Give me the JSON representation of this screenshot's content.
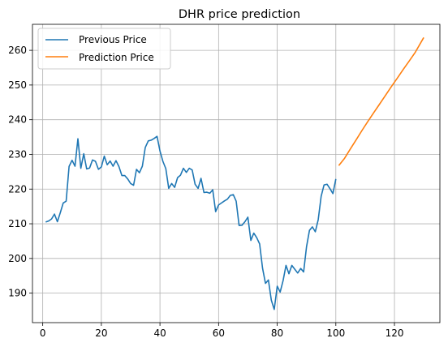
{
  "chart_data": {
    "type": "line",
    "title": "DHR price prediction",
    "xlabel": "",
    "ylabel": "",
    "xlim": [
      -3.5,
      135.5
    ],
    "ylim": [
      181.5,
      267.5
    ],
    "xticks": [
      0,
      20,
      40,
      60,
      80,
      100,
      120
    ],
    "yticks": [
      190,
      200,
      210,
      220,
      230,
      240,
      250,
      260
    ],
    "grid": true,
    "legend": "upper left",
    "series": [
      {
        "name": "Previous Price",
        "color": "#1f77b4",
        "x": [
          1,
          2,
          3,
          4,
          5,
          6,
          7,
          8,
          9,
          10,
          11,
          12,
          13,
          14,
          15,
          16,
          17,
          18,
          19,
          20,
          21,
          22,
          23,
          24,
          25,
          26,
          27,
          28,
          29,
          30,
          31,
          32,
          33,
          34,
          35,
          36,
          37,
          38,
          39,
          40,
          41,
          42,
          43,
          44,
          45,
          46,
          47,
          48,
          49,
          50,
          51,
          52,
          53,
          54,
          55,
          56,
          57,
          58,
          59,
          60,
          61,
          62,
          63,
          64,
          65,
          66,
          67,
          68,
          69,
          70,
          71,
          72,
          73,
          74,
          75,
          76,
          77,
          78,
          79,
          80,
          81,
          82,
          83,
          84,
          85,
          86,
          87,
          88,
          89,
          90,
          91,
          92,
          93,
          94,
          95,
          96,
          97,
          98,
          99,
          100
        ],
        "y": [
          210.5,
          210.8,
          211.4,
          212.8,
          210.6,
          213.2,
          216.0,
          216.5,
          226.5,
          228.3,
          226.6,
          234.5,
          226.0,
          230.2,
          225.8,
          226.1,
          228.4,
          228.0,
          225.7,
          226.4,
          229.5,
          227.0,
          228.1,
          226.6,
          228.2,
          226.5,
          223.9,
          223.9,
          222.9,
          221.6,
          221.1,
          225.7,
          224.7,
          226.6,
          232.0,
          233.9,
          234.1,
          234.6,
          235.2,
          231.0,
          228.0,
          225.9,
          220.2,
          221.6,
          220.5,
          223.3,
          224.0,
          226.0,
          224.8,
          226.0,
          225.5,
          221.4,
          220.2,
          223.1,
          219.0,
          219.1,
          218.8,
          219.8,
          213.5,
          215.4,
          216.0,
          216.6,
          217.1,
          218.2,
          218.4,
          216.5,
          209.5,
          209.6,
          210.6,
          211.9,
          205.2,
          207.3,
          206.0,
          204.2,
          197.2,
          192.8,
          193.8,
          188.0,
          185.3,
          192.0,
          190.3,
          193.6,
          198.0,
          195.6,
          198.0,
          196.9,
          195.8,
          197.1,
          196.1,
          203.4,
          208.1,
          209.1,
          207.7,
          211.2,
          217.9,
          221.2,
          221.4,
          220.1,
          218.7,
          222.9
        ]
      },
      {
        "name": "Prediction Price",
        "color": "#ff7f0e",
        "x": [
          101,
          103,
          105,
          107,
          109,
          111,
          113,
          115,
          117,
          119,
          121,
          123,
          125,
          127,
          130
        ],
        "y": [
          226.8,
          228.9,
          231.6,
          234.3,
          237.0,
          239.6,
          242.1,
          244.6,
          247.1,
          249.6,
          252.0,
          254.5,
          256.9,
          259.3,
          263.7
        ]
      }
    ]
  }
}
